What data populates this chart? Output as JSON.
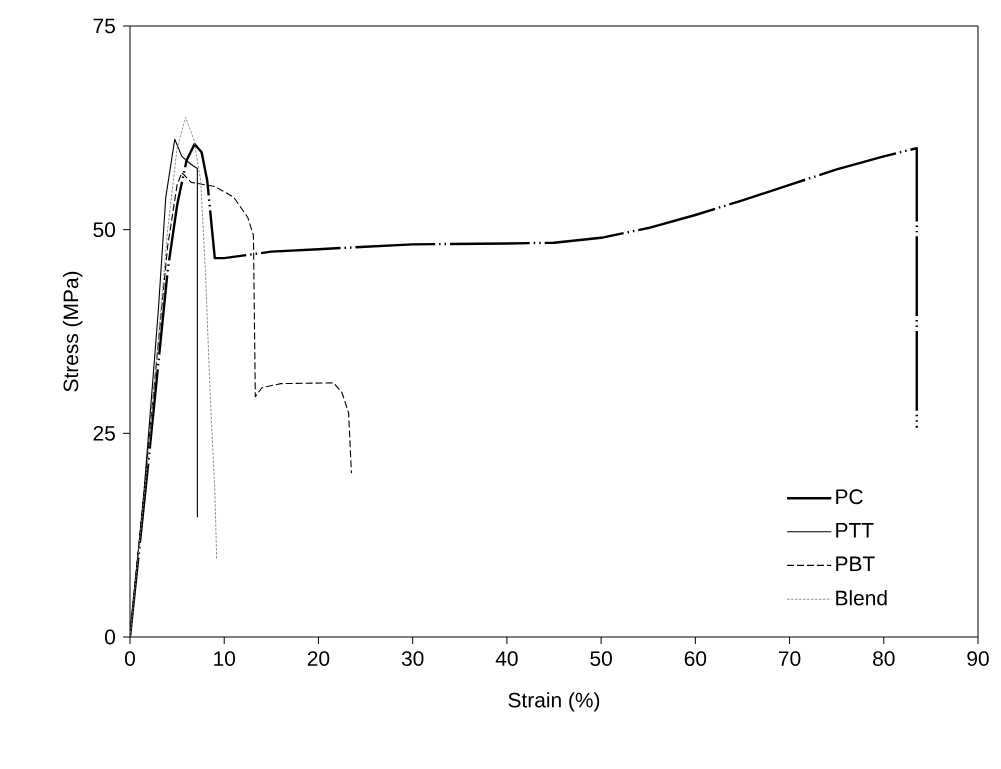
{
  "chart_data": {
    "type": "line",
    "xlabel": "Strain (%)",
    "ylabel": "Stress (MPa)",
    "xlim": [
      0,
      90
    ],
    "xticks": [
      0,
      10,
      20,
      30,
      40,
      50,
      60,
      70,
      80,
      90
    ],
    "ylim": [
      0,
      75
    ],
    "yticks": [
      0,
      25,
      50,
      75
    ],
    "legend": "bottom right",
    "grid": false,
    "marker": "none",
    "series": [
      {
        "name": "PC",
        "color": "#000000",
        "line_style": "dashdotdot",
        "x": [
          0,
          2,
          4,
          5,
          6,
          6.85,
          7.6,
          8.2,
          9,
          10,
          15,
          20,
          30,
          40,
          45,
          50,
          55,
          60,
          65,
          70,
          75,
          80,
          83.5,
          83.5
        ],
        "values": [
          0,
          22,
          45,
          53,
          58.5,
          60.5,
          59.5,
          56,
          46.5,
          46.5,
          47.3,
          47.6,
          48.2,
          48.3,
          48.4,
          49,
          50.2,
          51.8,
          53.6,
          55.5,
          57.4,
          59,
          60,
          25.7
        ]
      },
      {
        "name": "PTT",
        "color": "#000000",
        "line_style": "solid",
        "x": [
          0,
          1.5,
          3,
          3.8,
          4.75,
          5.5,
          6.5,
          7.15,
          7.15
        ],
        "values": [
          0,
          18,
          40,
          54,
          61.1,
          59,
          58,
          57.5,
          14.7
        ]
      },
      {
        "name": "PBT",
        "color": "#000000",
        "line_style": "dashed",
        "x": [
          0,
          2,
          4,
          5,
          5.5,
          6.5,
          9,
          11,
          12.5,
          13.1,
          13.3,
          14,
          16,
          21.6,
          22.5,
          23.2,
          23.5
        ],
        "values": [
          0,
          24,
          48,
          55.5,
          57,
          55.8,
          55.3,
          54,
          51.5,
          49.3,
          29.5,
          30.6,
          31.1,
          31.2,
          30,
          27.5,
          20.1
        ]
      },
      {
        "name": "Blend",
        "color": "#808080",
        "line_style": "dotted",
        "x": [
          0,
          2,
          4,
          5,
          5.9,
          6.8,
          7.5,
          8,
          8.5,
          9,
          9.2
        ],
        "values": [
          0,
          23,
          50,
          60,
          63.8,
          61,
          56,
          45,
          30,
          18,
          9.6
        ]
      }
    ]
  }
}
